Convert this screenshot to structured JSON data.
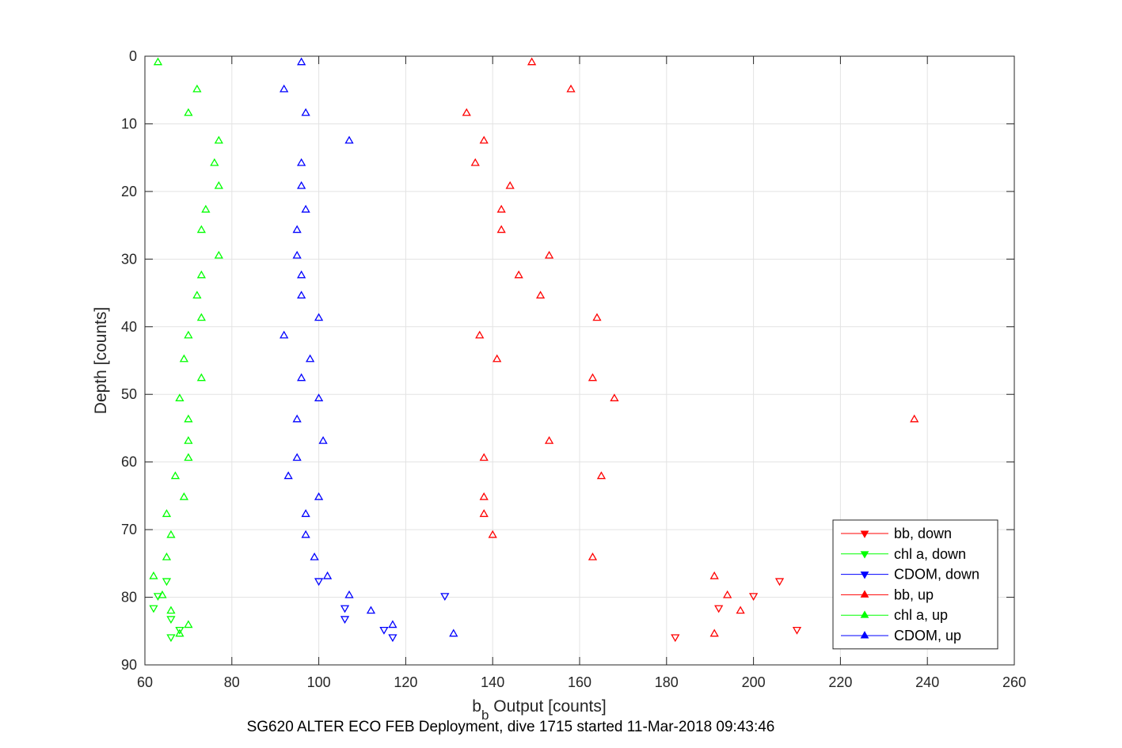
{
  "chart_data": {
    "type": "scatter",
    "xlabel_main": "b",
    "xlabel_sub": "b",
    "xlabel_rest": " Output [counts]",
    "ylabel": "Depth [counts]",
    "caption": "SG620 ALTER ECO FEB Deployment, dive 1715 started 11-Mar-2018 09:43:46",
    "xlim": [
      60,
      260
    ],
    "ylim": [
      90,
      0
    ],
    "y_reversed": true,
    "xticks": [
      "60",
      "80",
      "100",
      "120",
      "140",
      "160",
      "180",
      "200",
      "220",
      "240",
      "260"
    ],
    "yticks": [
      "0",
      "10",
      "20",
      "30",
      "40",
      "50",
      "60",
      "70",
      "80",
      "90"
    ],
    "grid": true,
    "legend_position": "bottom-right",
    "series": [
      {
        "name": "bb, down",
        "color": "#ff0000",
        "marker": "triangle-down",
        "points": [
          [
            206,
            77.6
          ],
          [
            200,
            79.8
          ],
          [
            192,
            81.6
          ],
          [
            210,
            84.8
          ],
          [
            182,
            85.9
          ]
        ]
      },
      {
        "name": "chl a, down",
        "color": "#00ff00",
        "marker": "triangle-down",
        "points": [
          [
            65,
            77.6
          ],
          [
            63,
            79.8
          ],
          [
            62,
            81.6
          ],
          [
            66,
            83.2
          ],
          [
            68,
            84.8
          ],
          [
            66,
            85.9
          ]
        ]
      },
      {
        "name": "CDOM, down",
        "color": "#0000ff",
        "marker": "triangle-down",
        "points": [
          [
            129,
            79.8
          ],
          [
            100,
            77.6
          ],
          [
            106,
            81.6
          ],
          [
            106,
            83.2
          ],
          [
            115,
            84.8
          ],
          [
            117,
            85.9
          ]
        ]
      },
      {
        "name": "bb, up",
        "color": "#ff0000",
        "marker": "triangle-up",
        "points": [
          [
            149,
            0.9
          ],
          [
            158,
            4.9
          ],
          [
            134,
            8.4
          ],
          [
            138,
            12.5
          ],
          [
            136,
            15.8
          ],
          [
            144,
            19.2
          ],
          [
            142,
            22.7
          ],
          [
            142,
            25.7
          ],
          [
            153,
            29.5
          ],
          [
            146,
            32.4
          ],
          [
            151,
            35.4
          ],
          [
            164,
            38.7
          ],
          [
            137,
            41.3
          ],
          [
            141,
            44.8
          ],
          [
            163,
            47.6
          ],
          [
            168,
            50.6
          ],
          [
            237,
            53.7
          ],
          [
            153,
            56.9
          ],
          [
            138,
            59.4
          ],
          [
            165,
            62.1
          ],
          [
            138,
            65.2
          ],
          [
            138,
            67.7
          ],
          [
            140,
            70.8
          ],
          [
            163,
            74.1
          ],
          [
            191,
            76.9
          ],
          [
            194,
            79.7
          ],
          [
            197,
            82.0
          ],
          [
            191,
            85.4
          ]
        ]
      },
      {
        "name": "chl a, up",
        "color": "#00ff00",
        "marker": "triangle-up",
        "points": [
          [
            63,
            0.9
          ],
          [
            72,
            4.9
          ],
          [
            70,
            8.4
          ],
          [
            77,
            12.5
          ],
          [
            76,
            15.8
          ],
          [
            77,
            19.2
          ],
          [
            74,
            22.7
          ],
          [
            73,
            25.7
          ],
          [
            77,
            29.5
          ],
          [
            73,
            32.4
          ],
          [
            72,
            35.4
          ],
          [
            73,
            38.7
          ],
          [
            70,
            41.3
          ],
          [
            69,
            44.8
          ],
          [
            73,
            47.6
          ],
          [
            68,
            50.6
          ],
          [
            70,
            53.7
          ],
          [
            70,
            56.9
          ],
          [
            70,
            59.4
          ],
          [
            67,
            62.1
          ],
          [
            69,
            65.2
          ],
          [
            65,
            67.7
          ],
          [
            66,
            70.8
          ],
          [
            65,
            74.1
          ],
          [
            62,
            76.9
          ],
          [
            64,
            79.7
          ],
          [
            66,
            82.0
          ],
          [
            70,
            84.1
          ],
          [
            68,
            85.4
          ]
        ]
      },
      {
        "name": "CDOM, up",
        "color": "#0000ff",
        "marker": "triangle-up",
        "points": [
          [
            96,
            0.9
          ],
          [
            92,
            4.9
          ],
          [
            97,
            8.4
          ],
          [
            107,
            12.5
          ],
          [
            96,
            15.8
          ],
          [
            96,
            19.2
          ],
          [
            97,
            22.7
          ],
          [
            95,
            25.7
          ],
          [
            95,
            29.5
          ],
          [
            96,
            32.4
          ],
          [
            96,
            35.4
          ],
          [
            100,
            38.7
          ],
          [
            92,
            41.3
          ],
          [
            98,
            44.8
          ],
          [
            96,
            47.6
          ],
          [
            100,
            50.6
          ],
          [
            95,
            53.7
          ],
          [
            101,
            56.9
          ],
          [
            95,
            59.4
          ],
          [
            93,
            62.1
          ],
          [
            100,
            65.2
          ],
          [
            97,
            67.7
          ],
          [
            97,
            70.8
          ],
          [
            99,
            74.1
          ],
          [
            102,
            76.9
          ],
          [
            107,
            79.7
          ],
          [
            112,
            82.0
          ],
          [
            117,
            84.1
          ],
          [
            131,
            85.4
          ]
        ]
      }
    ]
  }
}
